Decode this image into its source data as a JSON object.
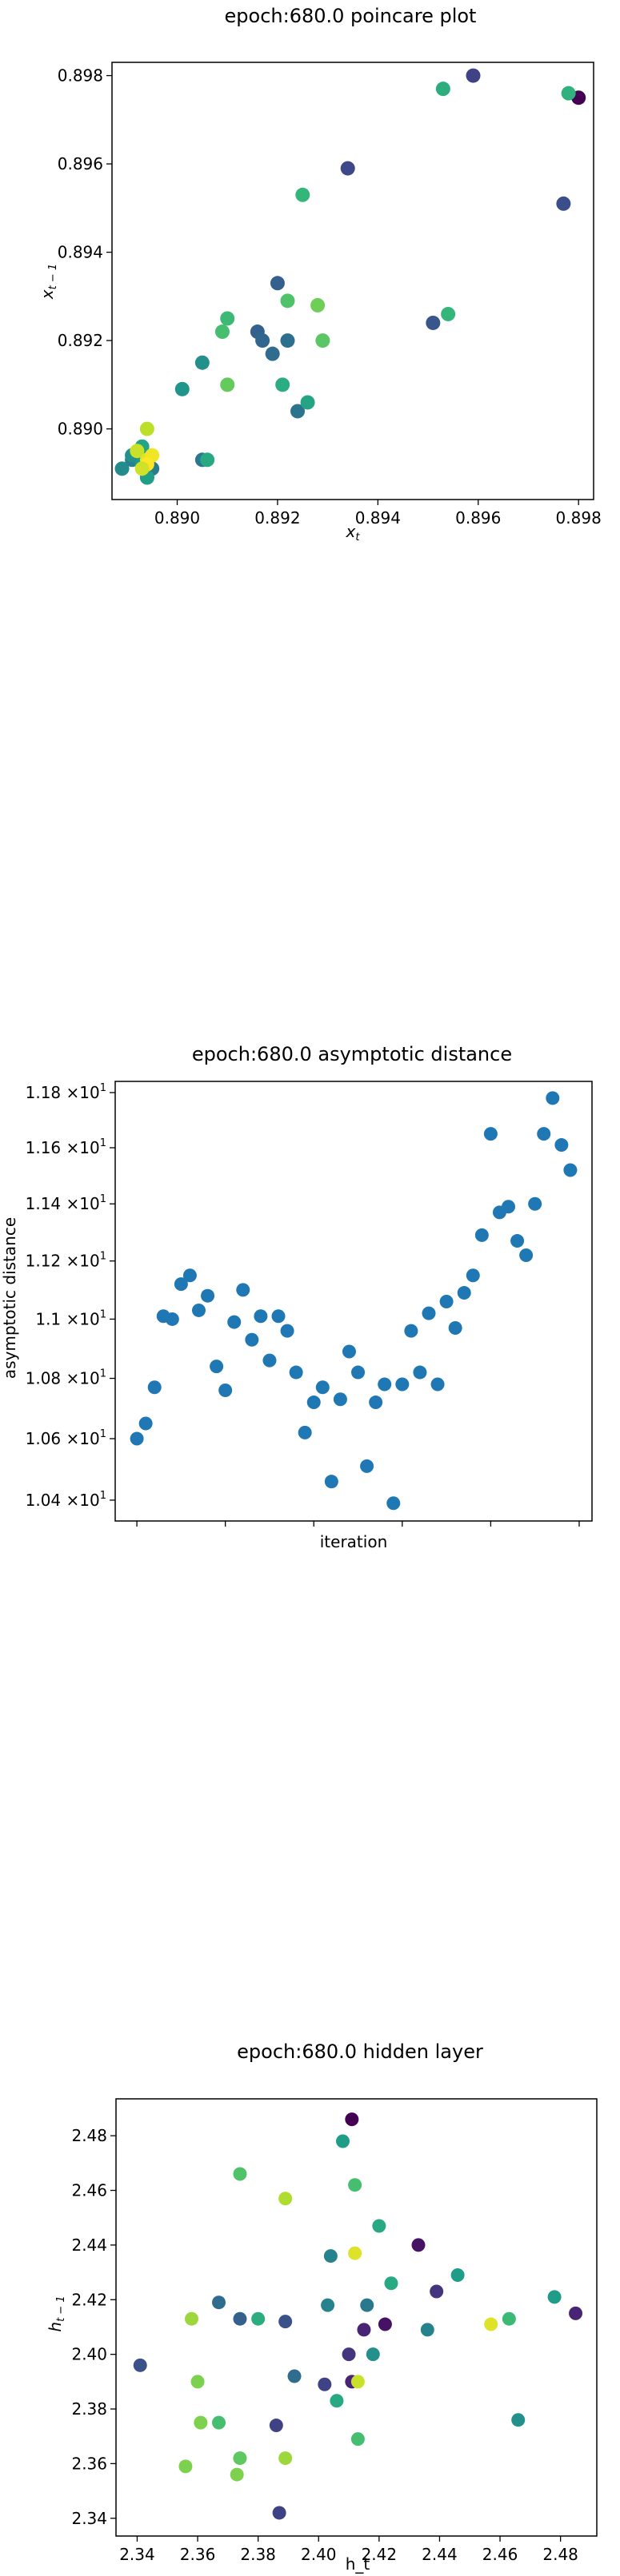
{
  "chart_data": [
    {
      "type": "scatter",
      "title": "epoch:680.0 poincare plot",
      "xlabel": "x_t",
      "ylabel": "x_{t-1}",
      "xlim": [
        0.8887,
        0.8983
      ],
      "ylim": [
        0.8884,
        0.8983
      ],
      "xticks": [
        0.89,
        0.892,
        0.894,
        0.896,
        0.898
      ],
      "xtick_labels": [
        "0.890",
        "0.892",
        "0.894",
        "0.896",
        "0.898"
      ],
      "yticks": [
        0.89,
        0.892,
        0.894,
        0.896,
        0.898
      ],
      "ytick_labels": [
        "0.890",
        "0.892",
        "0.894",
        "0.896",
        "0.898"
      ],
      "grid": false,
      "colormap": "viridis",
      "x": [
        0.898,
        0.8959,
        0.8934,
        0.8977,
        0.8951,
        0.892,
        0.8916,
        0.8917,
        0.8919,
        0.8922,
        0.8924,
        0.8905,
        0.8895,
        0.8891,
        0.8894,
        0.8893,
        0.8905,
        0.8901,
        0.8953,
        0.8978,
        0.8925,
        0.891,
        0.8909,
        0.8922,
        0.8929,
        0.8928,
        0.8906,
        0.8921,
        0.8926,
        0.891,
        0.8954,
        0.8889,
        0.8891,
        0.8893,
        0.8894,
        0.8893,
        0.8894,
        0.8892,
        0.8894,
        0.8895,
        0.8894,
        0.8893
      ],
      "y": [
        0.8975,
        0.898,
        0.8959,
        0.8951,
        0.8924,
        0.8933,
        0.8922,
        0.892,
        0.8917,
        0.892,
        0.8904,
        0.8893,
        0.8891,
        0.8893,
        0.8889,
        0.8895,
        0.8915,
        0.8909,
        0.8977,
        0.8976,
        0.8953,
        0.8925,
        0.8922,
        0.8929,
        0.892,
        0.8928,
        0.8893,
        0.891,
        0.8906,
        0.891,
        0.8926,
        0.8891,
        0.8894,
        0.8892,
        0.8889,
        0.8896,
        0.89,
        0.8895,
        0.8893,
        0.8894,
        0.8892,
        0.8891
      ],
      "c": [
        0.0,
        0.2,
        0.22,
        0.24,
        0.27,
        0.3,
        0.31,
        0.33,
        0.35,
        0.36,
        0.38,
        0.4,
        0.42,
        0.44,
        0.45,
        0.46,
        0.5,
        0.52,
        0.62,
        0.64,
        0.66,
        0.68,
        0.7,
        0.72,
        0.74,
        0.78,
        0.6,
        0.62,
        0.58,
        0.76,
        0.66,
        0.48,
        0.5,
        0.54,
        0.56,
        0.58,
        0.9,
        0.92,
        0.95,
        0.98,
        1.0,
        0.93
      ]
    },
    {
      "type": "scatter",
      "title": "epoch:680.0 asymptotic distance",
      "xlabel": "iteration",
      "ylabel": "asymptotic distance",
      "xlim": [
        -2.45,
        51.45
      ],
      "ylim": [
        10.333,
        11.841
      ],
      "yscale": "log",
      "xticks": [
        0,
        10,
        20,
        30,
        40,
        50
      ],
      "xtick_labels": [
        "0",
        "10",
        "20",
        "30",
        "40",
        "50"
      ],
      "yticks": [
        10.4,
        10.6,
        10.8,
        11.0,
        11.2,
        11.4,
        11.6,
        11.8
      ],
      "ytick_labels": [
        "1.04",
        "1.06",
        "1.08",
        "1.1",
        "1.12",
        "1.14",
        "1.16",
        "1.18"
      ],
      "ytick_suffix": [
        "×10",
        "1"
      ],
      "grid": false,
      "color": "#1f77b4",
      "x": [
        0,
        1,
        2,
        3,
        4,
        5,
        6,
        7,
        8,
        9,
        10,
        11,
        12,
        13,
        14,
        15,
        16,
        17,
        18,
        19,
        20,
        21,
        22,
        23,
        24,
        25,
        26,
        27,
        28,
        29,
        30,
        31,
        32,
        33,
        34,
        35,
        36,
        37,
        38,
        39,
        40,
        41,
        42,
        43,
        44,
        45,
        46,
        47,
        48,
        49
      ],
      "y": [
        10.6,
        10.65,
        10.77,
        11.01,
        11.0,
        11.12,
        11.15,
        11.03,
        11.08,
        10.84,
        10.76,
        10.99,
        11.1,
        10.93,
        11.01,
        10.86,
        11.01,
        10.96,
        10.82,
        10.62,
        10.72,
        10.77,
        10.46,
        10.73,
        10.89,
        10.82,
        10.51,
        10.72,
        10.78,
        10.39,
        10.78,
        10.96,
        10.82,
        11.02,
        10.78,
        11.06,
        10.97,
        11.09,
        11.15,
        11.29,
        11.65,
        11.37,
        11.39,
        11.27,
        11.22,
        11.4,
        11.65,
        11.78,
        11.61,
        11.52
      ]
    },
    {
      "type": "scatter",
      "title": "epoch:680.0 hidden layer",
      "xlabel": "h_t",
      "ylabel": "h_{t-1}",
      "xlim": [
        2.333,
        2.492
      ],
      "ylim": [
        2.3335,
        2.4935
      ],
      "xticks": [
        2.34,
        2.36,
        2.38,
        2.4,
        2.42,
        2.44,
        2.46,
        2.48
      ],
      "xtick_labels": [
        "2.34",
        "2.36",
        "2.38",
        "2.40",
        "2.42",
        "2.44",
        "2.46",
        "2.48"
      ],
      "yticks": [
        2.34,
        2.36,
        2.38,
        2.4,
        2.42,
        2.44,
        2.46,
        2.48
      ],
      "ytick_labels": [
        "2.34",
        "2.36",
        "2.38",
        "2.40",
        "2.42",
        "2.44",
        "2.46",
        "2.48"
      ],
      "grid": false,
      "colormap": "viridis",
      "x": [
        2.411,
        2.408,
        2.412,
        2.374,
        2.389,
        2.42,
        2.433,
        2.424,
        2.446,
        2.416,
        2.404,
        2.436,
        2.439,
        2.415,
        2.422,
        2.41,
        2.374,
        2.367,
        2.341,
        2.386,
        2.392,
        2.402,
        2.403,
        2.478,
        2.485,
        2.463,
        2.466,
        2.356,
        2.36,
        2.367,
        2.358,
        2.361,
        2.373,
        2.374,
        2.389,
        2.387,
        2.389,
        2.411,
        2.413,
        2.418,
        2.38,
        2.457,
        2.412,
        2.413,
        2.406
      ],
      "y": [
        2.486,
        2.478,
        2.462,
        2.466,
        2.457,
        2.447,
        2.44,
        2.426,
        2.429,
        2.418,
        2.436,
        2.409,
        2.423,
        2.409,
        2.411,
        2.4,
        2.413,
        2.419,
        2.396,
        2.374,
        2.392,
        2.389,
        2.418,
        2.421,
        2.415,
        2.413,
        2.376,
        2.359,
        2.39,
        2.375,
        2.413,
        2.375,
        2.356,
        2.362,
        2.362,
        2.342,
        2.412,
        2.39,
        2.39,
        2.4,
        2.413,
        2.411,
        2.437,
        2.369,
        2.383
      ],
      "c": [
        0.0,
        0.55,
        0.7,
        0.72,
        0.88,
        0.6,
        0.05,
        0.6,
        0.55,
        0.4,
        0.45,
        0.45,
        0.15,
        0.1,
        0.05,
        0.15,
        0.3,
        0.35,
        0.25,
        0.2,
        0.35,
        0.2,
        0.45,
        0.55,
        0.1,
        0.68,
        0.5,
        0.8,
        0.8,
        0.7,
        0.85,
        0.8,
        0.8,
        0.75,
        0.85,
        0.2,
        0.25,
        0.1,
        0.92,
        0.5,
        0.62,
        0.95,
        0.95,
        0.7,
        0.6
      ]
    }
  ]
}
